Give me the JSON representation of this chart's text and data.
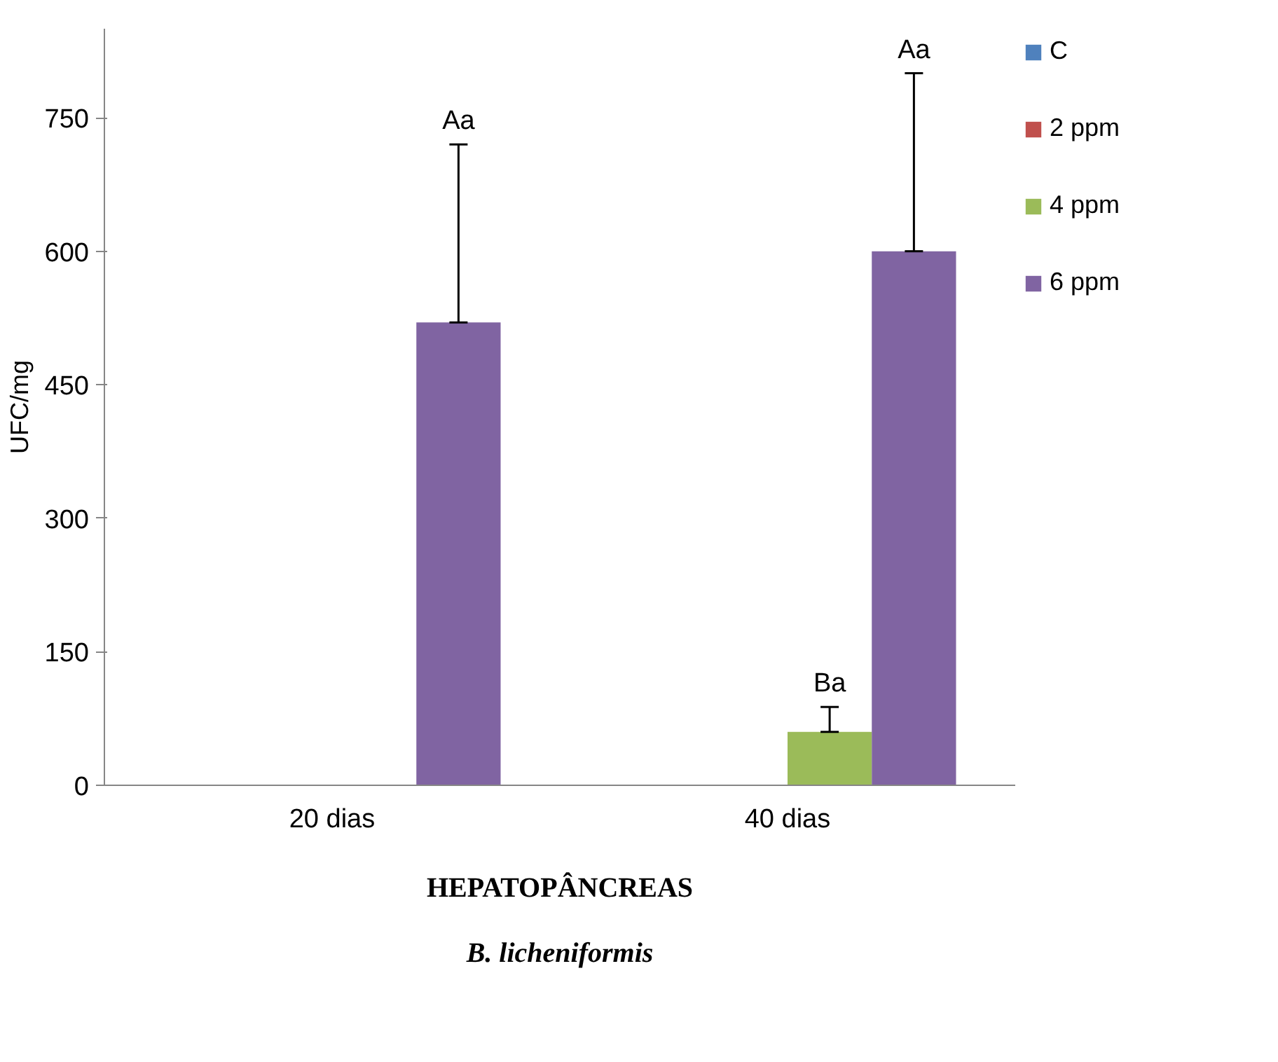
{
  "chart_data": {
    "type": "bar",
    "title": "HEPATOPÂNCREAS",
    "subtitle": "B. licheniformis",
    "ylabel": "UFC/mg",
    "categories": [
      "20 dias",
      "40 dias"
    ],
    "series": [
      {
        "name": "C",
        "color": "#4f81bd",
        "values": [
          0,
          0
        ]
      },
      {
        "name": "2 ppm",
        "color": "#c0504d",
        "values": [
          0,
          0
        ]
      },
      {
        "name": "4 ppm",
        "color": "#9bbb59",
        "values": [
          0,
          60
        ],
        "errors": [
          null,
          [
            60,
            88
          ]
        ]
      },
      {
        "name": "6 ppm",
        "color": "#8064a2",
        "values": [
          520,
          600
        ],
        "errors": [
          [
            520,
            720
          ],
          [
            600,
            800
          ]
        ]
      }
    ],
    "annotations": [
      "Aa",
      "Ba",
      "Aa"
    ],
    "ylim": [
      0,
      850
    ],
    "yticks": [
      0,
      150,
      300,
      450,
      600,
      750
    ],
    "grid": false,
    "legend": "top right"
  }
}
